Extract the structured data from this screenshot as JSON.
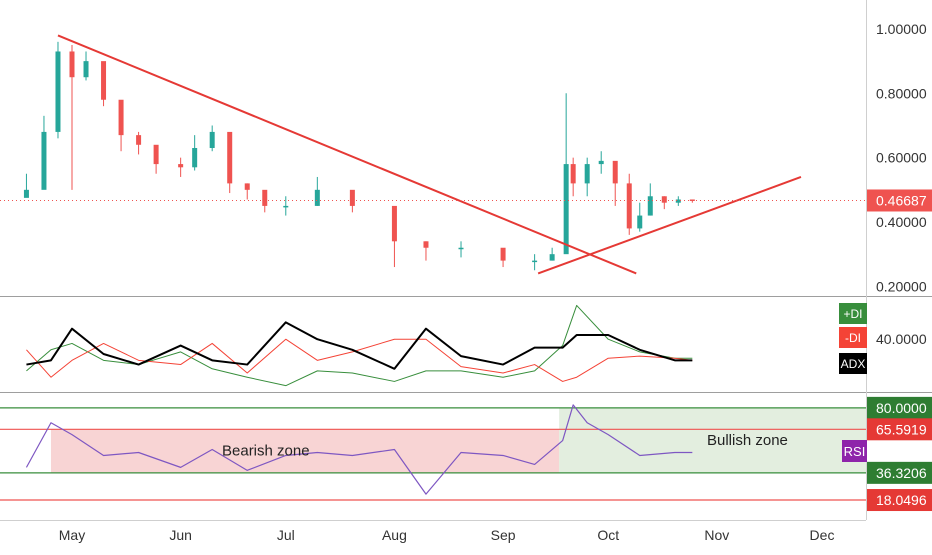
{
  "colors": {
    "up": "#26a69a",
    "down": "#ef5350",
    "trendline": "#e53935",
    "plus_di": "#388e3c",
    "minus_di": "#f44336",
    "adx": "#000000",
    "rsi": "#7e57c2",
    "bearish_fill": "#f6c6c6",
    "bullish_fill": "#d9e8d4",
    "price_badge": "#ef5350"
  },
  "price_axis": {
    "ticks": [
      "1.00000",
      "0.80000",
      "0.60000",
      "0.40000",
      "0.20000"
    ],
    "last_price": "0.46687"
  },
  "adx_panel": {
    "ticks": [
      "40.0000"
    ],
    "labels": {
      "plus_di": "+DI",
      "minus_di": "-DI",
      "adx": "ADX"
    }
  },
  "rsi_panel": {
    "levels": [
      "80.0000",
      "65.5919",
      "36.3206",
      "18.0496"
    ],
    "label": "RSI",
    "bearish_text": "Bearish zone",
    "bullish_text": "Bullish zone"
  },
  "time_axis": {
    "ticks": [
      "May",
      "Jun",
      "Jul",
      "Aug",
      "Sep",
      "Oct",
      "Nov",
      "Dec"
    ]
  },
  "chart_data": [
    {
      "type": "candlestick",
      "ylim": [
        0.17,
        1.09
      ],
      "x": [
        "Apr 18",
        "Apr 23",
        "Apr 27",
        "May 1",
        "May 5",
        "May 10",
        "May 15",
        "May 20",
        "May 25",
        "Jun 1",
        "Jun 5",
        "Jun 10",
        "Jun 15",
        "Jun 20",
        "Jun 25",
        "Jul 1",
        "Jul 10",
        "Jul 20",
        "Aug 1",
        "Aug 10",
        "Aug 20",
        "Sep 1",
        "Sep 10",
        "Sep 15",
        "Sep 19",
        "Sep 21",
        "Sep 25",
        "Sep 29",
        "Oct 3",
        "Oct 7",
        "Oct 10",
        "Oct 13",
        "Oct 17",
        "Oct 21",
        "Oct 25"
      ],
      "close": [
        0.5,
        0.68,
        0.93,
        0.85,
        0.9,
        0.78,
        0.67,
        0.64,
        0.58,
        0.57,
        0.63,
        0.68,
        0.52,
        0.5,
        0.45,
        0.45,
        0.5,
        0.45,
        0.34,
        0.32,
        0.32,
        0.28,
        0.28,
        0.3,
        0.58,
        0.52,
        0.58,
        0.59,
        0.52,
        0.38,
        0.42,
        0.48,
        0.46,
        0.47,
        0.467
      ],
      "high": [
        0.55,
        0.73,
        0.96,
        0.95,
        0.93,
        0.83,
        0.7,
        0.68,
        0.62,
        0.6,
        0.67,
        0.7,
        0.57,
        0.52,
        0.49,
        0.48,
        0.54,
        0.48,
        0.36,
        0.34,
        0.34,
        0.3,
        0.3,
        0.32,
        0.8,
        0.6,
        0.6,
        0.62,
        0.55,
        0.55,
        0.46,
        0.52,
        0.48,
        0.48,
        0.47
      ],
      "low": [
        0.48,
        0.64,
        0.66,
        0.5,
        0.84,
        0.76,
        0.62,
        0.61,
        0.55,
        0.54,
        0.56,
        0.62,
        0.49,
        0.47,
        0.43,
        0.42,
        0.45,
        0.43,
        0.26,
        0.28,
        0.29,
        0.26,
        0.25,
        0.28,
        0.32,
        0.48,
        0.48,
        0.55,
        0.45,
        0.36,
        0.37,
        0.42,
        0.44,
        0.45,
        0.46
      ],
      "trendlines": [
        {
          "from": [
            "Apr 27",
            0.98
          ],
          "to": [
            "Oct 9",
            0.24
          ]
        },
        {
          "from": [
            "Sep 11",
            0.24
          ],
          "to": [
            "Nov 25",
            0.54
          ]
        }
      ]
    },
    {
      "type": "line",
      "ylim": [
        15,
        60
      ],
      "x": [
        "Apr 18",
        "Apr 25",
        "May 1",
        "May 10",
        "May 20",
        "Jun 1",
        "Jun 10",
        "Jun 20",
        "Jul 1",
        "Jul 10",
        "Jul 20",
        "Aug 1",
        "Aug 10",
        "Aug 20",
        "Sep 1",
        "Sep 10",
        "Sep 18",
        "Sep 22",
        "Oct 1",
        "Oct 10",
        "Oct 20",
        "Oct 25"
      ],
      "series": [
        {
          "name": "+DI",
          "values": [
            25,
            35,
            38,
            30,
            28,
            34,
            26,
            22,
            18,
            25,
            24,
            20,
            25,
            25,
            22,
            25,
            37,
            56,
            40,
            34,
            31,
            31
          ]
        },
        {
          "name": "-DI",
          "values": [
            35,
            22,
            30,
            38,
            30,
            28,
            38,
            24,
            40,
            30,
            34,
            40,
            40,
            27,
            24,
            28,
            20,
            22,
            31,
            32,
            31,
            30
          ]
        },
        {
          "name": "ADX",
          "values": [
            28,
            30,
            45,
            33,
            28,
            37,
            30,
            28,
            48,
            40,
            35,
            26,
            45,
            32,
            28,
            36,
            36,
            42,
            42,
            35,
            30,
            30
          ]
        }
      ]
    },
    {
      "type": "line",
      "ylim": [
        10,
        90
      ],
      "x": [
        "Apr 18",
        "Apr 25",
        "May 1",
        "May 10",
        "May 20",
        "Jun 1",
        "Jun 10",
        "Jun 20",
        "Jul 1",
        "Jul 10",
        "Jul 20",
        "Aug 1",
        "Aug 10",
        "Aug 20",
        "Sep 1",
        "Sep 10",
        "Sep 18",
        "Sep 21",
        "Sep 25",
        "Oct 1",
        "Oct 10",
        "Oct 20",
        "Oct 25"
      ],
      "series": [
        {
          "name": "RSI",
          "values": [
            40,
            70,
            62,
            48,
            50,
            40,
            52,
            38,
            48,
            50,
            48,
            52,
            22,
            50,
            48,
            42,
            58,
            82,
            70,
            62,
            48,
            50,
            50
          ]
        }
      ],
      "levels": [
        80,
        65.5919,
        36.3206,
        18.0496
      ],
      "zones": [
        {
          "label": "Bearish zone",
          "from": "Apr 25",
          "to": "Sep 17",
          "range": [
            36.3206,
            65.5919
          ]
        },
        {
          "label": "Bullish zone",
          "from": "Sep 17",
          "to": "Dec 16",
          "range": [
            36.3206,
            80
          ]
        }
      ]
    }
  ]
}
